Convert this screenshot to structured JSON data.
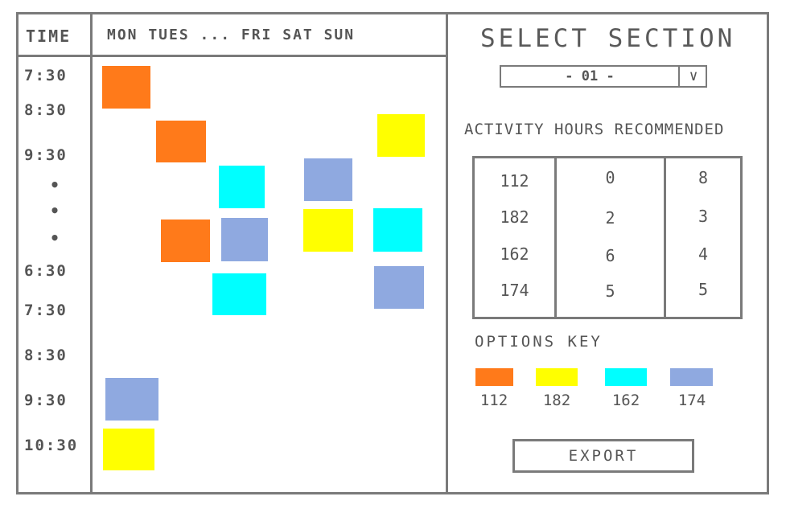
{
  "schedule": {
    "time_header": "TIME",
    "days_header": "MON TUES ... FRI SAT SUN",
    "times": [
      "7:30",
      "8:30",
      "9:30",
      "6:30",
      "7:30",
      "8:30",
      "9:30",
      "10:30"
    ],
    "ellipsis": [
      "•",
      "•",
      "•"
    ],
    "blocks": [
      {
        "option": "112"
      },
      {
        "option": "112"
      },
      {
        "option": "112"
      },
      {
        "option": "182"
      },
      {
        "option": "182"
      },
      {
        "option": "182"
      },
      {
        "option": "162"
      },
      {
        "option": "162"
      },
      {
        "option": "162"
      },
      {
        "option": "174"
      },
      {
        "option": "174"
      },
      {
        "option": "174"
      },
      {
        "option": "174"
      }
    ]
  },
  "panel": {
    "title": "SELECT SECTION",
    "section_select": {
      "value": "- 01 -",
      "chevron": "∨"
    },
    "activity_heading": "ACTIVITY HOURS RECOMMENDED",
    "activity_table": [
      [
        "112",
        "0",
        "8"
      ],
      [
        "182",
        "2",
        "3"
      ],
      [
        "162",
        "6",
        "4"
      ],
      [
        "174",
        "5",
        "5"
      ]
    ],
    "options_key_heading": "OPTIONS KEY",
    "options_key": [
      {
        "label": "112",
        "color": "#ff7a1a"
      },
      {
        "label": "182",
        "color": "#ffff00"
      },
      {
        "label": "162",
        "color": "#00ffff"
      },
      {
        "label": "174",
        "color": "#8fa9e0"
      }
    ],
    "export_label": "EXPORT"
  },
  "colors": {
    "112": "#ff7a1a",
    "182": "#ffff00",
    "162": "#00ffff",
    "174": "#8fa9e0",
    "outline": "#7a7a7a"
  }
}
